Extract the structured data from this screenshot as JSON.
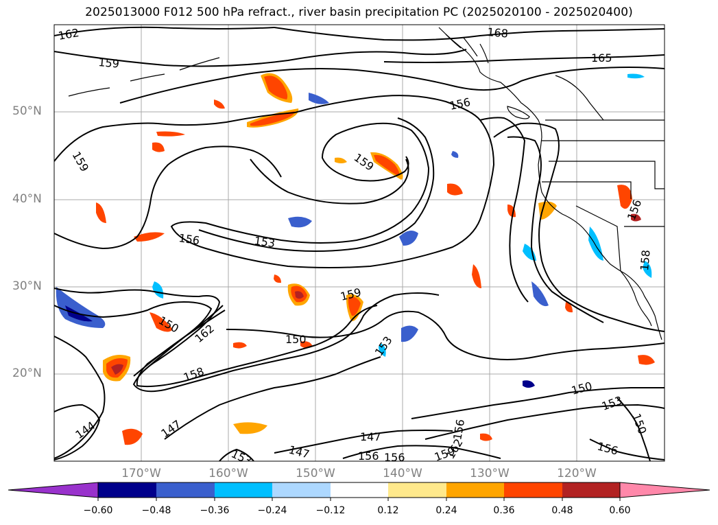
{
  "title": "2025013000 F012 500 hPa refract., river basin precipitation PC (2025020100 - 2025020400)",
  "lat_labels": [
    "50°N",
    "40°N",
    "30°N",
    "20°N"
  ],
  "lon_labels": [
    "170°W",
    "160°W",
    "150°W",
    "140°W",
    "130°W",
    "120°W"
  ],
  "contour_labels": [
    "162",
    "159",
    "168",
    "165",
    "156",
    "159",
    "159",
    "156",
    "153",
    "159",
    "150",
    "162",
    "150",
    "153",
    "158",
    "144",
    "147",
    "153",
    "147",
    "147",
    "156",
    "150",
    "153",
    "150",
    "156",
    "156",
    "158",
    "156",
    "159",
    "162",
    "156"
  ],
  "colorbar": {
    "ticks": [
      "−0.60",
      "−0.48",
      "−0.36",
      "−0.24",
      "−0.12",
      "0.12",
      "0.24",
      "0.36",
      "0.48",
      "0.60"
    ],
    "colors": [
      "#9932cc",
      "#00008b",
      "#3a5fcd",
      "#00bfff",
      "#add8ff",
      "#ffffff",
      "#ffe98c",
      "#ffa500",
      "#ff4500",
      "#b22222",
      "#ff88aa"
    ]
  },
  "colors": {
    "grid": "#a9a9a9",
    "contour": "#000000",
    "coast": "#000000"
  }
}
